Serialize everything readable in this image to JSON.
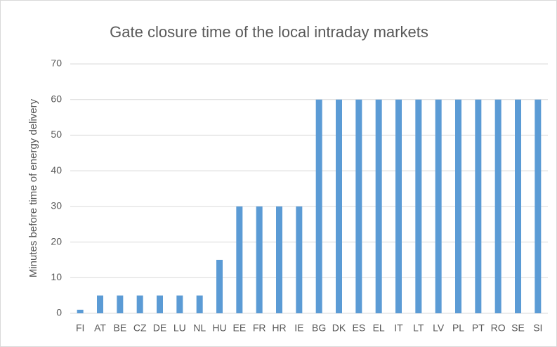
{
  "chart_data": {
    "type": "bar",
    "title": "Gate closure time of the local intraday markets",
    "y_label": "Minutes before time of energy delivery",
    "categories": [
      "FI",
      "AT",
      "BE",
      "CZ",
      "DE",
      "LU",
      "NL",
      "HU",
      "EE",
      "FR",
      "HR",
      "IE",
      "BG",
      "DK",
      "ES",
      "EL",
      "IT",
      "LT",
      "LV",
      "PL",
      "PT",
      "RO",
      "SE",
      "SI"
    ],
    "values": [
      1,
      5,
      5,
      5,
      5,
      5,
      5,
      15,
      30,
      30,
      30,
      30,
      60,
      60,
      60,
      60,
      60,
      60,
      60,
      60,
      60,
      60,
      60,
      60
    ],
    "color": "#5b9bd5",
    "ylim": [
      0,
      70
    ],
    "yticks": [
      0,
      10,
      20,
      30,
      40,
      50,
      60,
      70
    ],
    "grid": true
  }
}
